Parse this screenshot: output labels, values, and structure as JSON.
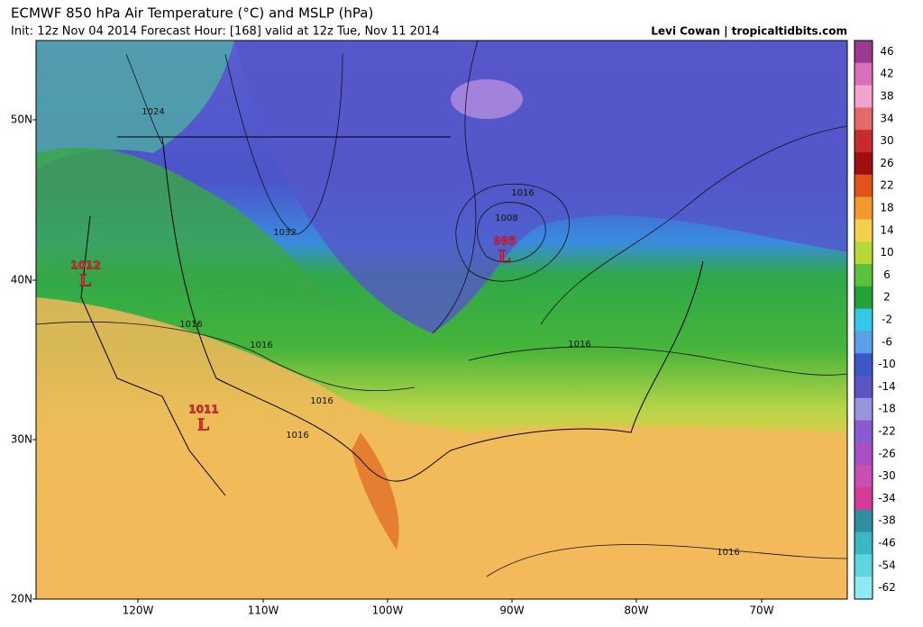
{
  "header": {
    "title": "ECMWF 850 hPa Air Temperature (°C) and MSLP (hPa)",
    "subtitle": "Init: 12z Nov 04 2014 Forecast Hour: [168] valid at 12z Tue, Nov 11 2014",
    "credit": "Levi Cowan | tropicaltidbits.com"
  },
  "colorbar": {
    "ticks": [
      46,
      42,
      38,
      34,
      30,
      26,
      22,
      18,
      14,
      10,
      6,
      2,
      -2,
      -6,
      -10,
      -14,
      -18,
      -22,
      -26,
      -30,
      -34,
      -38,
      -46,
      -54,
      -62
    ],
    "colors": [
      "#9b3b8e",
      "#d86fb8",
      "#f2a3cf",
      "#e46a6a",
      "#c92a2a",
      "#9e1010",
      "#e0541c",
      "#f39a2e",
      "#f4d04a",
      "#b8d83a",
      "#5cc13a",
      "#24a23a",
      "#33c8e8",
      "#5aa0e6",
      "#3d57c9",
      "#5a54c4",
      "#9a94dc",
      "#8a5ad0",
      "#a94fc4",
      "#c64fb0",
      "#d43a98",
      "#2f8fa2",
      "#3ab9c4",
      "#5ed6de",
      "#8eeaf0"
    ]
  },
  "latitudes": [
    "50N",
    "40N",
    "30N",
    "20N"
  ],
  "longitudes": [
    "120W",
    "110W",
    "100W",
    "90W",
    "80W",
    "70W"
  ],
  "lows": [
    {
      "pressure": "1012",
      "symbol": "L"
    },
    {
      "pressure": "995",
      "symbol": "L"
    },
    {
      "pressure": "1011",
      "symbol": "L"
    }
  ],
  "isobar_labels": [
    "1024",
    "1032",
    "1016",
    "1008",
    "1016",
    "1016",
    "1016",
    "1016",
    "1016",
    "1016"
  ]
}
